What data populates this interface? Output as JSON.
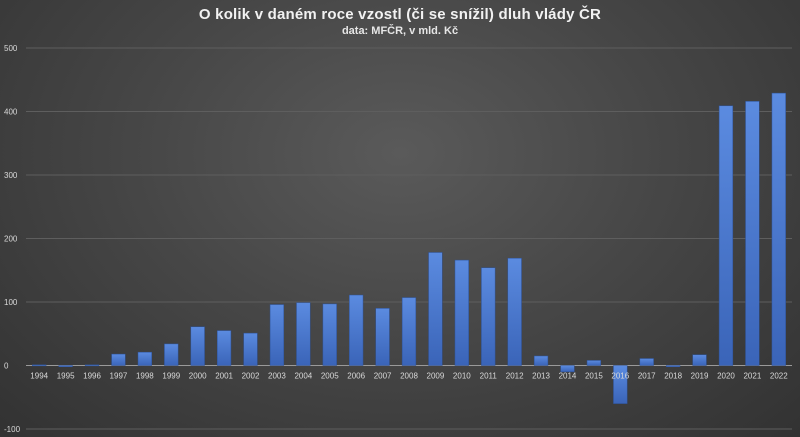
{
  "chart_data": {
    "type": "bar",
    "title": "O kolik v daném roce vzostl (či se snížil) dluh vlády ČR",
    "subtitle": "data: MFČR, v mld. Kč",
    "xlabel": "",
    "ylabel": "",
    "ylim": [
      -100,
      500
    ],
    "yticks": [
      -100,
      0,
      100,
      200,
      300,
      400,
      500
    ],
    "grid": true,
    "legend": "none",
    "bar_color": "#4472c4",
    "categories": [
      "1994",
      "1995",
      "1996",
      "1997",
      "1998",
      "1999",
      "2000",
      "2001",
      "2002",
      "2003",
      "2004",
      "2005",
      "2006",
      "2007",
      "2008",
      "2009",
      "2010",
      "2011",
      "2012",
      "2013",
      "2014",
      "2015",
      "2016",
      "2017",
      "2018",
      "2019",
      "2020",
      "2021",
      "2022"
    ],
    "values": [
      1,
      -2,
      1,
      18,
      21,
      34,
      61,
      55,
      51,
      96,
      99,
      97,
      111,
      90,
      107,
      178,
      166,
      154,
      169,
      15,
      -10,
      8,
      -60,
      11,
      -2,
      17,
      409,
      416,
      429
    ]
  }
}
